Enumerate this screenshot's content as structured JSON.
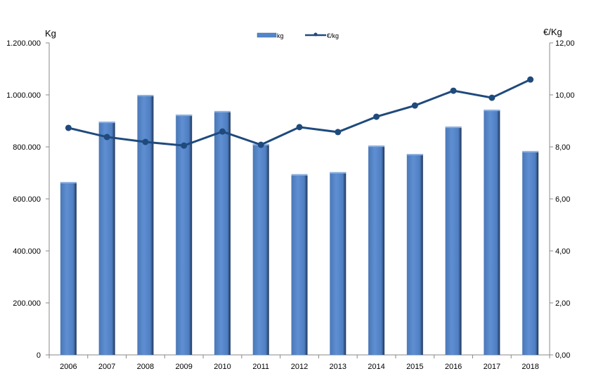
{
  "chart_data": {
    "type": "bar",
    "categories": [
      "2006",
      "2007",
      "2008",
      "2009",
      "2010",
      "2011",
      "2012",
      "2013",
      "2014",
      "2015",
      "2016",
      "2017",
      "2018"
    ],
    "series": [
      {
        "name": "kg",
        "type": "bar",
        "axis": "left",
        "color": "#5585c8",
        "values": [
          665000,
          897000,
          1000000,
          924000,
          938000,
          811000,
          695000,
          703000,
          805000,
          773000,
          878000,
          943000,
          784000
        ]
      },
      {
        "name": "€/kg",
        "type": "line",
        "axis": "right",
        "color": "#1f4a7c",
        "values": [
          8.73,
          8.38,
          8.19,
          8.05,
          8.59,
          8.08,
          8.76,
          8.57,
          9.16,
          9.59,
          10.16,
          9.89,
          10.59
        ]
      }
    ],
    "ylabel": "Kg",
    "y2label": "€/Kg",
    "ylim": [
      0,
      1200000
    ],
    "y2lim": [
      0,
      12
    ],
    "yticks": [
      "0",
      "200.000",
      "400.000",
      "600.000",
      "800.000",
      "1.000.000",
      "1.200.000"
    ],
    "y2ticks": [
      "0,00",
      "2,00",
      "4,00",
      "6,00",
      "8,00",
      "10,00",
      "12,00"
    ],
    "legend": "top-center",
    "grid": false
  }
}
